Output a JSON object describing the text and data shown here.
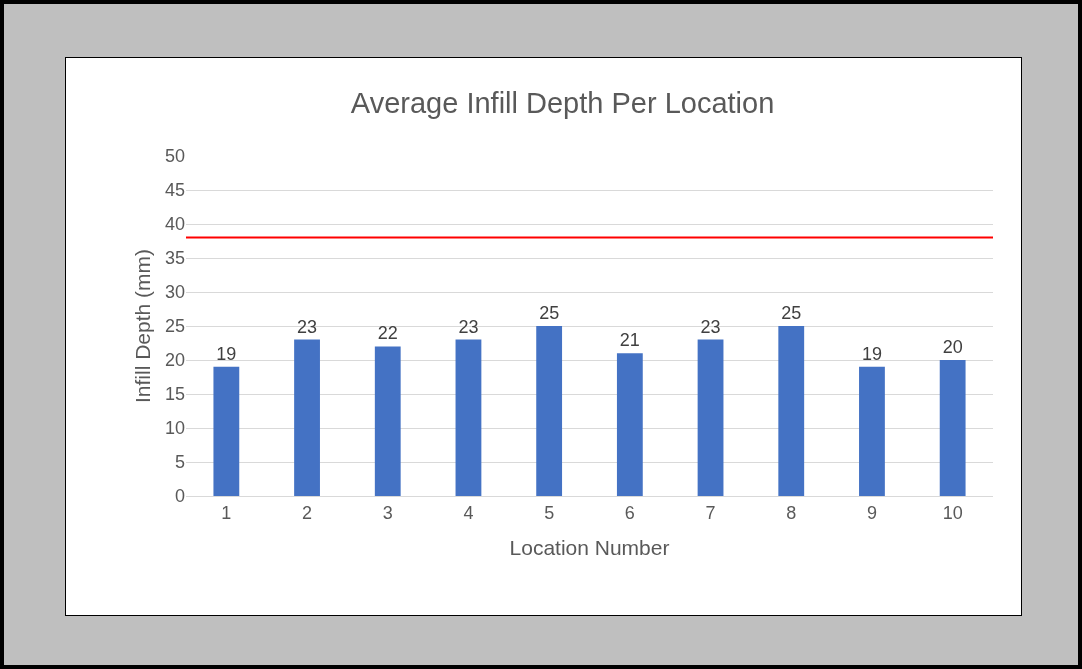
{
  "chart_data": {
    "type": "bar",
    "title": "Average Infill Depth Per Location",
    "xlabel": "Location Number",
    "ylabel": "Infill Depth (mm)",
    "categories": [
      "1",
      "2",
      "3",
      "4",
      "5",
      "6",
      "7",
      "8",
      "9",
      "10"
    ],
    "values": [
      19,
      23,
      22,
      23,
      25,
      21,
      23,
      25,
      19,
      20
    ],
    "color": "#4472c4",
    "ylim": [
      0,
      50
    ],
    "yticks": [
      0,
      5,
      10,
      15,
      20,
      25,
      30,
      35,
      40,
      45,
      50
    ],
    "grid": "y",
    "data_labels": true,
    "ref_lines": [
      {
        "axis": "y",
        "value": 38,
        "color": "#ff0000"
      }
    ]
  }
}
